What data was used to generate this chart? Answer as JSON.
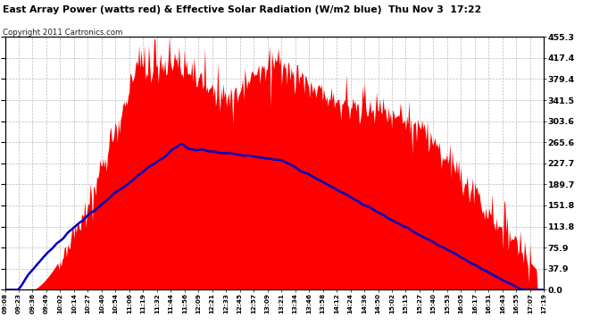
{
  "title": "East Array Power (watts red) & Effective Solar Radiation (W/m2 blue)  Thu Nov 3  17:22",
  "copyright": "Copyright 2011 Cartronics.com",
  "background_color": "#ffffff",
  "grid_color": "#bbbbbb",
  "ylim": [
    0.0,
    455.3
  ],
  "yticks": [
    0.0,
    37.9,
    75.9,
    113.8,
    151.8,
    189.7,
    227.7,
    265.6,
    303.6,
    341.5,
    379.4,
    417.4,
    455.3
  ],
  "x_labels": [
    "09:08",
    "09:23",
    "09:36",
    "09:49",
    "10:02",
    "10:14",
    "10:27",
    "10:40",
    "10:54",
    "11:06",
    "11:19",
    "11:32",
    "11:44",
    "11:56",
    "12:09",
    "12:21",
    "12:33",
    "12:45",
    "12:57",
    "13:09",
    "13:21",
    "13:34",
    "13:46",
    "13:58",
    "14:12",
    "14:24",
    "14:36",
    "14:50",
    "15:02",
    "15:15",
    "15:27",
    "15:40",
    "15:53",
    "16:05",
    "16:17",
    "16:31",
    "16:43",
    "16:55",
    "17:07",
    "17:19"
  ],
  "fill_color": "#ff0000",
  "line_color": "#0000bb",
  "fill_alpha": 1.0
}
